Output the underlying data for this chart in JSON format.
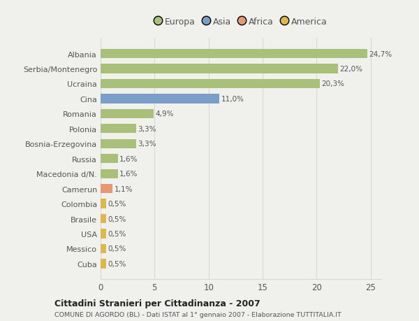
{
  "categories": [
    "Albania",
    "Serbia/Montenegro",
    "Ucraina",
    "Cina",
    "Romania",
    "Polonia",
    "Bosnia-Erzegovina",
    "Russia",
    "Macedonia d/N.",
    "Camerun",
    "Colombia",
    "Brasile",
    "USA",
    "Messico",
    "Cuba"
  ],
  "values": [
    24.7,
    22.0,
    20.3,
    11.0,
    4.9,
    3.3,
    3.3,
    1.6,
    1.6,
    1.1,
    0.5,
    0.5,
    0.5,
    0.5,
    0.5
  ],
  "labels": [
    "24,7%",
    "22,0%",
    "20,3%",
    "11,0%",
    "4,9%",
    "3,3%",
    "3,3%",
    "1,6%",
    "1,6%",
    "1,1%",
    "0,5%",
    "0,5%",
    "0,5%",
    "0,5%",
    "0,5%"
  ],
  "colors": [
    "#a8c07a",
    "#a8c07a",
    "#a8c07a",
    "#7a9ec8",
    "#a8c07a",
    "#a8c07a",
    "#a8c07a",
    "#a8c07a",
    "#a8c07a",
    "#e89870",
    "#ddb84a",
    "#ddb84a",
    "#ddb84a",
    "#ddb84a",
    "#ddb84a"
  ],
  "legend_labels": [
    "Europa",
    "Asia",
    "Africa",
    "America"
  ],
  "legend_colors": [
    "#a8c07a",
    "#7a9ec8",
    "#e89870",
    "#ddb84a"
  ],
  "title": "Cittadini Stranieri per Cittadinanza - 2007",
  "subtitle": "COMUNE DI AGORDO (BL) - Dati ISTAT al 1° gennaio 2007 - Elaborazione TUTTITALIA.IT",
  "xlim": [
    0,
    26
  ],
  "xticks": [
    0,
    5,
    10,
    15,
    20,
    25
  ],
  "background_color": "#f0f0ec",
  "bar_background": "#f0f0ec",
  "grid_color": "#d8d8d8",
  "text_color": "#555555"
}
